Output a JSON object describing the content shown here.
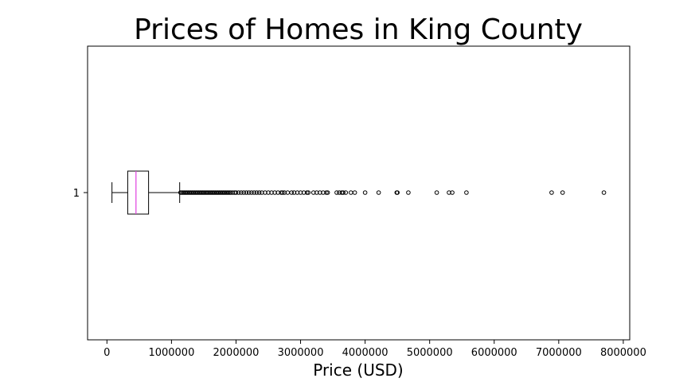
{
  "chart_data": {
    "type": "boxplot",
    "orientation": "horizontal",
    "title": "Prices of Homes in King County",
    "xlabel": "Price (USD)",
    "ylabel": "",
    "xlim": [
      -300000,
      8100000
    ],
    "xticks": [
      0,
      1000000,
      2000000,
      3000000,
      4000000,
      5000000,
      6000000,
      7000000,
      8000000
    ],
    "xtick_labels": [
      "0",
      "1000000",
      "2000000",
      "3000000",
      "4000000",
      "5000000",
      "6000000",
      "7000000",
      "8000000"
    ],
    "ytick_labels": [
      "1"
    ],
    "grid": false,
    "series": [
      {
        "category": "1",
        "whisker_low": 78000,
        "q1": 322000,
        "median": 450000,
        "q3": 645000,
        "whisker_high": 1127000,
        "outliers": [
          1140000,
          1160000,
          1180000,
          1200000,
          1220000,
          1240000,
          1260000,
          1280000,
          1300000,
          1320000,
          1340000,
          1360000,
          1380000,
          1400000,
          1420000,
          1440000,
          1460000,
          1480000,
          1500000,
          1520000,
          1540000,
          1560000,
          1580000,
          1600000,
          1620000,
          1640000,
          1660000,
          1680000,
          1700000,
          1720000,
          1740000,
          1760000,
          1780000,
          1800000,
          1820000,
          1840000,
          1860000,
          1880000,
          1900000,
          1920000,
          1950000,
          1980000,
          2000000,
          2040000,
          2080000,
          2120000,
          2160000,
          2200000,
          2240000,
          2280000,
          2320000,
          2360000,
          2400000,
          2450000,
          2500000,
          2550000,
          2600000,
          2650000,
          2700000,
          2720000,
          2750000,
          2800000,
          2860000,
          2900000,
          2950000,
          3000000,
          3050000,
          3100000,
          3120000,
          3200000,
          3250000,
          3300000,
          3350000,
          3400000,
          3420000,
          3560000,
          3600000,
          3640000,
          3660000,
          3700000,
          3780000,
          3840000,
          4000000,
          4210000,
          4490000,
          4500000,
          4670000,
          5110000,
          5300000,
          5350000,
          5570000,
          6890000,
          7060000,
          7700000
        ]
      }
    ],
    "colors": {
      "median": "#e040e0",
      "box": "#000000",
      "outlier": "#000000"
    }
  }
}
